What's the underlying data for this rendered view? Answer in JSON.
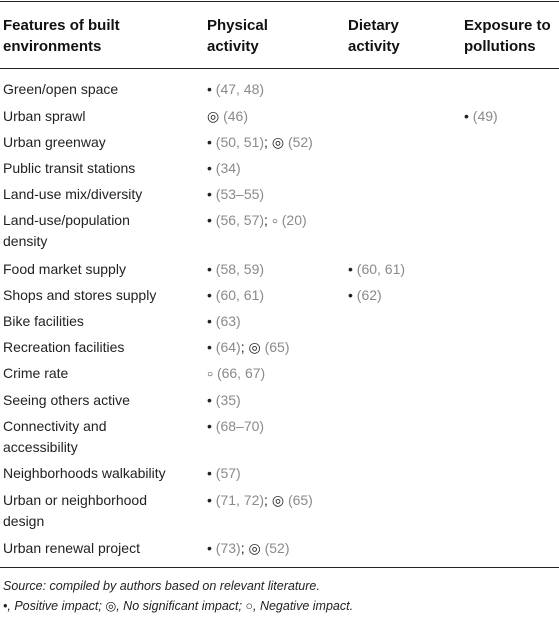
{
  "headers": [
    "Features of built environments",
    "Physical activity",
    "Dietary activity",
    "Exposure to pollutions"
  ],
  "rows": [
    {
      "feature": [
        "Green/open space"
      ],
      "physical": [
        [
          "•",
          "(47, 48)"
        ]
      ],
      "dietary": [],
      "exposure": []
    },
    {
      "feature": [
        "Urban sprawl"
      ],
      "physical": [
        [
          "◎",
          "(46)"
        ]
      ],
      "dietary": [],
      "exposure": [
        [
          "•",
          "(49)"
        ]
      ]
    },
    {
      "feature": [
        "Urban greenway"
      ],
      "physical": [
        [
          "•",
          "(50, 51)"
        ],
        [
          "◎",
          "(52)"
        ]
      ],
      "dietary": [],
      "exposure": []
    },
    {
      "feature": [
        "Public transit stations"
      ],
      "physical": [
        [
          "•",
          "(34)"
        ]
      ],
      "dietary": [],
      "exposure": []
    },
    {
      "feature": [
        "Land-use mix/diversity"
      ],
      "physical": [
        [
          "•",
          "(53–55)"
        ]
      ],
      "dietary": [],
      "exposure": []
    },
    {
      "feature": [
        "Land-use/population",
        "density"
      ],
      "physical": [
        [
          "•",
          "(56, 57)"
        ],
        [
          "○",
          "(20)"
        ]
      ],
      "dietary": [],
      "exposure": []
    },
    {
      "feature": [
        "Food market supply"
      ],
      "physical": [
        [
          "•",
          "(58, 59)"
        ]
      ],
      "dietary": [
        [
          "•",
          "(60, 61)"
        ]
      ],
      "exposure": []
    },
    {
      "feature": [
        "Shops and stores supply"
      ],
      "physical": [
        [
          "•",
          "(60, 61)"
        ]
      ],
      "dietary": [
        [
          "•",
          "(62)"
        ]
      ],
      "exposure": []
    },
    {
      "feature": [
        "Bike facilities"
      ],
      "physical": [
        [
          "•",
          "(63)"
        ]
      ],
      "dietary": [],
      "exposure": []
    },
    {
      "feature": [
        "Recreation facilities"
      ],
      "physical": [
        [
          "•",
          "(64)"
        ],
        [
          "◎",
          "(65)"
        ]
      ],
      "dietary": [],
      "exposure": []
    },
    {
      "feature": [
        "Crime rate"
      ],
      "physical": [
        [
          "○",
          "(66, 67)"
        ]
      ],
      "dietary": [],
      "exposure": []
    },
    {
      "feature": [
        "Seeing others active"
      ],
      "physical": [
        [
          "•",
          "(35)"
        ]
      ],
      "dietary": [],
      "exposure": []
    },
    {
      "feature": [
        "Connectivity and",
        "accessibility"
      ],
      "physical": [
        [
          "•",
          "(68–70)"
        ]
      ],
      "dietary": [],
      "exposure": []
    },
    {
      "feature": [
        "Neighborhoods walkability"
      ],
      "physical": [
        [
          "•",
          "(57)"
        ]
      ],
      "dietary": [],
      "exposure": []
    },
    {
      "feature": [
        "Urban or neighborhood",
        "design"
      ],
      "physical": [
        [
          "•",
          "(71, 72)"
        ],
        [
          "◎",
          "(65)"
        ]
      ],
      "dietary": [],
      "exposure": []
    },
    {
      "feature": [
        "Urban renewal project"
      ],
      "physical": [
        [
          "•",
          "(73)"
        ],
        [
          "◎",
          "(52)"
        ]
      ],
      "dietary": [],
      "exposure": []
    }
  ],
  "footnotes": {
    "source": "Source: compiled by authors based on relevant literature.",
    "legend": "•, Positive impact; ◎, No significant impact; ○, Negative impact."
  }
}
